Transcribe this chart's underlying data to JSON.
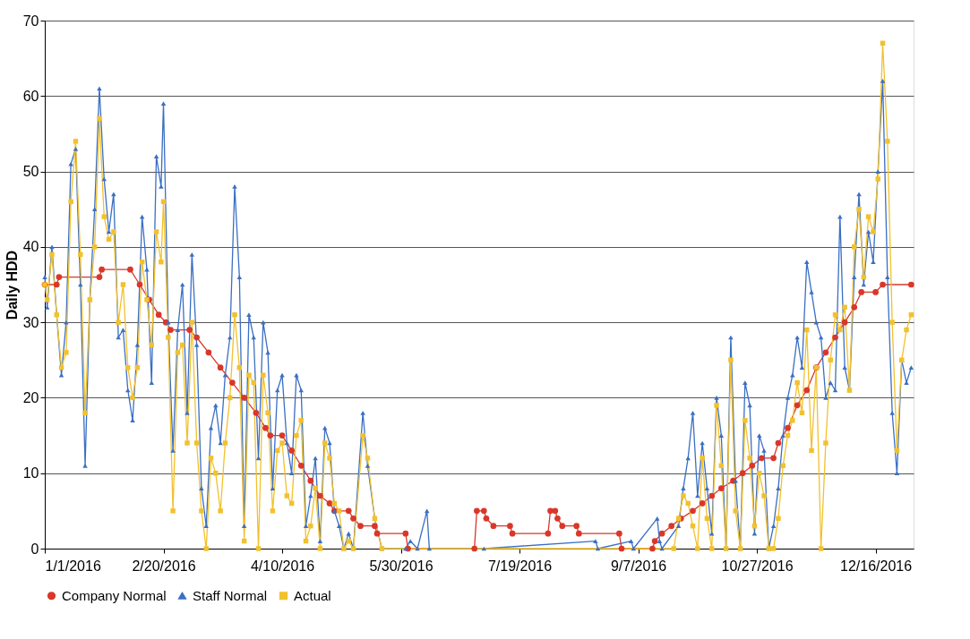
{
  "chart_data": {
    "type": "line",
    "ylabel": "Daily HDD",
    "grid": "y",
    "legend": "bottom",
    "line_style": "solid",
    "xlim": [
      "2016-01-01",
      "2017-01-01"
    ],
    "ylim": [
      0,
      70
    ],
    "yticks": [
      0,
      10,
      20,
      30,
      40,
      50,
      60,
      70
    ],
    "xticks": [
      {
        "value": "2016-01-01",
        "label": "1/1/2016"
      },
      {
        "value": "2016-02-20",
        "label": "2/20/2016"
      },
      {
        "value": "2016-04-10",
        "label": "4/10/2016"
      },
      {
        "value": "2016-05-30",
        "label": "5/30/2016"
      },
      {
        "value": "2016-07-19",
        "label": "7/19/2016"
      },
      {
        "value": "2016-09-07",
        "label": "9/7/2016"
      },
      {
        "value": "2016-10-27",
        "label": "10/27/2016"
      },
      {
        "value": "2016-12-16",
        "label": "12/16/2016"
      }
    ],
    "series": [
      {
        "name": "Company Normal",
        "color": "#d9372a",
        "marker": "circle",
        "x": [
          "2016-01-01",
          "2016-01-06",
          "2016-01-07",
          "2016-01-24",
          "2016-01-25",
          "2016-02-06",
          "2016-02-10",
          "2016-02-14",
          "2016-02-18",
          "2016-02-21",
          "2016-02-23",
          "2016-03-02",
          "2016-03-05",
          "2016-03-10",
          "2016-03-15",
          "2016-03-20",
          "2016-03-25",
          "2016-03-30",
          "2016-04-03",
          "2016-04-05",
          "2016-04-10",
          "2016-04-14",
          "2016-04-18",
          "2016-04-22",
          "2016-04-26",
          "2016-04-30",
          "2016-05-02",
          "2016-05-08",
          "2016-05-10",
          "2016-05-13",
          "2016-05-19",
          "2016-05-20",
          "2016-06-01",
          "2016-06-02",
          "2016-06-30",
          "2016-07-01",
          "2016-07-04",
          "2016-07-05",
          "2016-07-08",
          "2016-07-15",
          "2016-07-16",
          "2016-07-31",
          "2016-08-01",
          "2016-08-03",
          "2016-08-04",
          "2016-08-06",
          "2016-08-12",
          "2016-08-13",
          "2016-08-30",
          "2016-08-31",
          "2016-09-13",
          "2016-09-14",
          "2016-09-17",
          "2016-09-21",
          "2016-09-25",
          "2016-09-30",
          "2016-10-04",
          "2016-10-08",
          "2016-10-12",
          "2016-10-17",
          "2016-10-21",
          "2016-10-25",
          "2016-10-29",
          "2016-11-03",
          "2016-11-05",
          "2016-11-09",
          "2016-11-13",
          "2016-11-17",
          "2016-11-21",
          "2016-11-25",
          "2016-11-29",
          "2016-12-03",
          "2016-12-07",
          "2016-12-10",
          "2016-12-16",
          "2016-12-19",
          "2016-12-31"
        ],
        "values": [
          35,
          35,
          36,
          36,
          37,
          37,
          35,
          33,
          31,
          30,
          29,
          29,
          28,
          26,
          24,
          22,
          20,
          18,
          16,
          15,
          15,
          13,
          11,
          9,
          7,
          6,
          5,
          5,
          4,
          3,
          3,
          2,
          2,
          0,
          0,
          5,
          5,
          4,
          3,
          3,
          2,
          2,
          5,
          5,
          4,
          3,
          3,
          2,
          2,
          0,
          0,
          1,
          2,
          3,
          4,
          5,
          6,
          7,
          8,
          9,
          10,
          11,
          12,
          12,
          14,
          16,
          19,
          21,
          24,
          26,
          28,
          30,
          32,
          34,
          34,
          35,
          35
        ]
      },
      {
        "name": "Staff Normal",
        "color": "#3a6fc4",
        "marker": "triangle",
        "x": [
          "2016-01-01",
          "2016-01-02",
          "2016-01-04",
          "2016-01-06",
          "2016-01-08",
          "2016-01-10",
          "2016-01-12",
          "2016-01-14",
          "2016-01-16",
          "2016-01-18",
          "2016-01-20",
          "2016-01-22",
          "2016-01-24",
          "2016-01-26",
          "2016-01-28",
          "2016-01-30",
          "2016-02-01",
          "2016-02-03",
          "2016-02-05",
          "2016-02-07",
          "2016-02-09",
          "2016-02-11",
          "2016-02-13",
          "2016-02-15",
          "2016-02-17",
          "2016-02-19",
          "2016-02-20",
          "2016-02-22",
          "2016-02-24",
          "2016-02-26",
          "2016-02-28",
          "2016-03-01",
          "2016-03-03",
          "2016-03-05",
          "2016-03-07",
          "2016-03-09",
          "2016-03-11",
          "2016-03-13",
          "2016-03-15",
          "2016-03-17",
          "2016-03-19",
          "2016-03-21",
          "2016-03-23",
          "2016-03-25",
          "2016-03-27",
          "2016-03-29",
          "2016-03-31",
          "2016-04-02",
          "2016-04-04",
          "2016-04-06",
          "2016-04-08",
          "2016-04-10",
          "2016-04-12",
          "2016-04-14",
          "2016-04-16",
          "2016-04-18",
          "2016-04-20",
          "2016-04-22",
          "2016-04-24",
          "2016-04-26",
          "2016-04-28",
          "2016-04-30",
          "2016-05-02",
          "2016-05-04",
          "2016-05-06",
          "2016-05-08",
          "2016-05-10",
          "2016-05-14",
          "2016-05-16",
          "2016-05-19",
          "2016-05-22",
          "2016-06-01",
          "2016-06-03",
          "2016-06-06",
          "2016-06-10",
          "2016-06-11",
          "2016-07-04",
          "2016-08-20",
          "2016-08-21",
          "2016-09-04",
          "2016-09-05",
          "2016-09-15",
          "2016-09-16",
          "2016-09-17",
          "2016-09-24",
          "2016-09-26",
          "2016-09-28",
          "2016-09-30",
          "2016-10-02",
          "2016-10-04",
          "2016-10-06",
          "2016-10-08",
          "2016-10-10",
          "2016-10-12",
          "2016-10-14",
          "2016-10-16",
          "2016-10-18",
          "2016-10-20",
          "2016-10-22",
          "2016-10-24",
          "2016-10-26",
          "2016-10-28",
          "2016-10-30",
          "2016-11-01",
          "2016-11-03",
          "2016-11-05",
          "2016-11-07",
          "2016-11-09",
          "2016-11-11",
          "2016-11-13",
          "2016-11-15",
          "2016-11-17",
          "2016-11-19",
          "2016-11-21",
          "2016-11-23",
          "2016-11-25",
          "2016-11-27",
          "2016-11-29",
          "2016-12-01",
          "2016-12-03",
          "2016-12-05",
          "2016-12-07",
          "2016-12-09",
          "2016-12-11",
          "2016-12-13",
          "2016-12-15",
          "2016-12-17",
          "2016-12-19",
          "2016-12-21",
          "2016-12-23",
          "2016-12-25",
          "2016-12-27",
          "2016-12-29",
          "2016-12-31"
        ],
        "values": [
          36,
          32,
          40,
          31,
          23,
          30,
          51,
          53,
          35,
          11,
          33,
          45,
          61,
          49,
          42,
          47,
          28,
          29,
          21,
          17,
          27,
          44,
          37,
          22,
          52,
          48,
          59,
          30,
          13,
          29,
          35,
          18,
          39,
          27,
          8,
          3,
          16,
          19,
          14,
          23,
          28,
          48,
          36,
          3,
          31,
          28,
          12,
          30,
          26,
          8,
          21,
          23,
          14,
          10,
          23,
          21,
          3,
          7,
          12,
          1,
          16,
          14,
          5,
          3,
          0,
          2,
          0,
          18,
          11,
          4,
          0,
          0,
          1,
          0,
          5,
          0,
          0,
          1,
          0,
          1,
          0,
          4,
          1,
          0,
          3,
          8,
          12,
          18,
          7,
          14,
          8,
          2,
          20,
          15,
          0,
          28,
          9,
          0,
          22,
          19,
          2,
          15,
          13,
          0,
          3,
          8,
          15,
          20,
          23,
          28,
          24,
          38,
          34,
          30,
          28,
          20,
          22,
          21,
          44,
          24,
          21,
          36,
          47,
          35,
          42,
          38,
          50,
          62,
          36,
          18,
          10,
          25,
          22,
          24
        ]
      },
      {
        "name": "Actual",
        "color": "#f2c12e",
        "marker": "square",
        "x": [
          "2016-01-01",
          "2016-01-02",
          "2016-01-04",
          "2016-01-06",
          "2016-01-08",
          "2016-01-10",
          "2016-01-12",
          "2016-01-14",
          "2016-01-16",
          "2016-01-18",
          "2016-01-20",
          "2016-01-22",
          "2016-01-24",
          "2016-01-26",
          "2016-01-28",
          "2016-01-30",
          "2016-02-01",
          "2016-02-03",
          "2016-02-05",
          "2016-02-07",
          "2016-02-09",
          "2016-02-11",
          "2016-02-13",
          "2016-02-15",
          "2016-02-17",
          "2016-02-19",
          "2016-02-20",
          "2016-02-22",
          "2016-02-24",
          "2016-02-26",
          "2016-02-28",
          "2016-03-01",
          "2016-03-03",
          "2016-03-05",
          "2016-03-07",
          "2016-03-09",
          "2016-03-11",
          "2016-03-13",
          "2016-03-15",
          "2016-03-17",
          "2016-03-19",
          "2016-03-21",
          "2016-03-23",
          "2016-03-25",
          "2016-03-27",
          "2016-03-29",
          "2016-03-31",
          "2016-04-02",
          "2016-04-04",
          "2016-04-06",
          "2016-04-08",
          "2016-04-10",
          "2016-04-12",
          "2016-04-14",
          "2016-04-16",
          "2016-04-18",
          "2016-04-20",
          "2016-04-22",
          "2016-04-24",
          "2016-04-26",
          "2016-04-28",
          "2016-04-30",
          "2016-05-02",
          "2016-05-04",
          "2016-05-06",
          "2016-05-08",
          "2016-05-10",
          "2016-05-14",
          "2016-05-16",
          "2016-05-19",
          "2016-05-22",
          "2016-09-22",
          "2016-09-24",
          "2016-09-26",
          "2016-09-28",
          "2016-09-30",
          "2016-10-02",
          "2016-10-04",
          "2016-10-06",
          "2016-10-08",
          "2016-10-10",
          "2016-10-12",
          "2016-10-14",
          "2016-10-16",
          "2016-10-18",
          "2016-10-20",
          "2016-10-22",
          "2016-10-24",
          "2016-10-26",
          "2016-10-28",
          "2016-10-30",
          "2016-11-01",
          "2016-11-03",
          "2016-11-05",
          "2016-11-07",
          "2016-11-09",
          "2016-11-11",
          "2016-11-13",
          "2016-11-15",
          "2016-11-17",
          "2016-11-19",
          "2016-11-21",
          "2016-11-23",
          "2016-11-25",
          "2016-11-27",
          "2016-11-29",
          "2016-12-01",
          "2016-12-03",
          "2016-12-05",
          "2016-12-07",
          "2016-12-09",
          "2016-12-11",
          "2016-12-13",
          "2016-12-15",
          "2016-12-17",
          "2016-12-19",
          "2016-12-21",
          "2016-12-23",
          "2016-12-25",
          "2016-12-27",
          "2016-12-29",
          "2016-12-31"
        ],
        "values": [
          35,
          33,
          39,
          31,
          24,
          26,
          46,
          54,
          39,
          18,
          33,
          40,
          57,
          44,
          41,
          42,
          30,
          35,
          24,
          20,
          24,
          38,
          33,
          27,
          42,
          38,
          46,
          28,
          5,
          26,
          27,
          14,
          30,
          14,
          5,
          0,
          12,
          10,
          5,
          14,
          20,
          31,
          24,
          1,
          23,
          22,
          0,
          23,
          18,
          5,
          13,
          14,
          7,
          6,
          15,
          17,
          1,
          3,
          8,
          0,
          14,
          12,
          6,
          5,
          0,
          1,
          0,
          15,
          12,
          4,
          0,
          0,
          4,
          7,
          6,
          3,
          0,
          12,
          4,
          0,
          19,
          11,
          0,
          25,
          5,
          0,
          17,
          12,
          3,
          10,
          7,
          0,
          0,
          4,
          11,
          15,
          17,
          22,
          18,
          29,
          13,
          24,
          0,
          14,
          25,
          31,
          29,
          32,
          21,
          40,
          45,
          36,
          44,
          42,
          49,
          67,
          54,
          30,
          13,
          25,
          29,
          31
        ]
      }
    ]
  }
}
